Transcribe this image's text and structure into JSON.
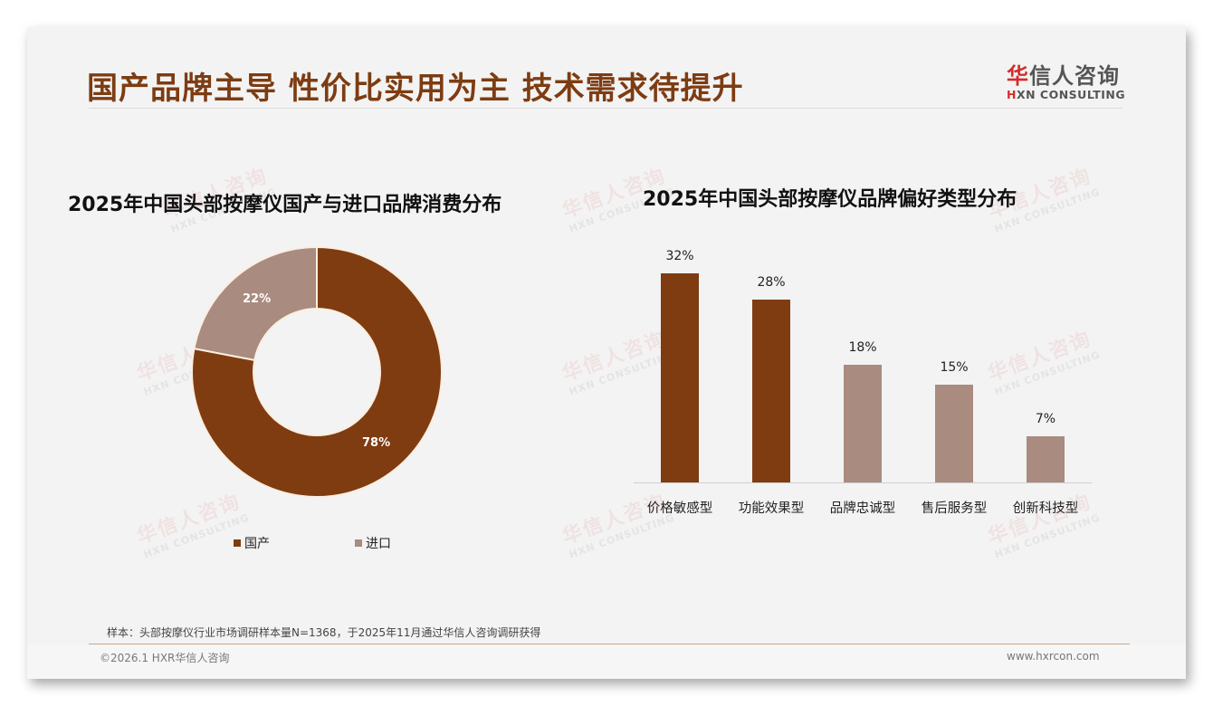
{
  "slide": {
    "title": "国产品牌主导 性价比实用为主 技术需求待提升",
    "logo": {
      "cn_first": "华",
      "cn_rest": "信人咨询",
      "en_first": "H",
      "en_rest": "XN CONSULTING"
    },
    "watermark": {
      "cn": "华信人咨询",
      "en": "HXN CONSULTING"
    },
    "note": "样本：头部按摩仪行业市场调研样本量N=1368，于2025年11月通过华信人咨询调研获得",
    "footer": {
      "copyright": "©2026.1 HXR华信人咨询",
      "website": "www.hxrcon.com"
    }
  },
  "colors": {
    "primary": "#7f3c11",
    "secondary": "#a98b80",
    "title": "#7d3c12",
    "background": "#f3f3f3"
  },
  "chart_data": [
    {
      "type": "pie",
      "subtype": "donut",
      "title": "2025年中国头部按摩仪国产与进口品牌消费分布",
      "categories": [
        "国产",
        "进口"
      ],
      "values": [
        78,
        22
      ],
      "labels": [
        "78%",
        "22%"
      ],
      "colors": [
        "#7f3c11",
        "#a98b80"
      ],
      "legend_position": "bottom"
    },
    {
      "type": "bar",
      "title": "2025年中国头部按摩仪品牌偏好类型分布",
      "categories": [
        "价格敏感型",
        "功能效果型",
        "品牌忠诚型",
        "售后服务型",
        "创新科技型"
      ],
      "values": [
        32,
        28,
        18,
        15,
        7
      ],
      "labels": [
        "32%",
        "28%",
        "18%",
        "15%",
        "7%"
      ],
      "colors": [
        "#7f3c11",
        "#7f3c11",
        "#a98b80",
        "#a98b80",
        "#a98b80"
      ],
      "xlabel": "",
      "ylabel": "",
      "ylim": [
        0,
        35
      ],
      "grid": false,
      "y_axis_visible": false
    }
  ]
}
